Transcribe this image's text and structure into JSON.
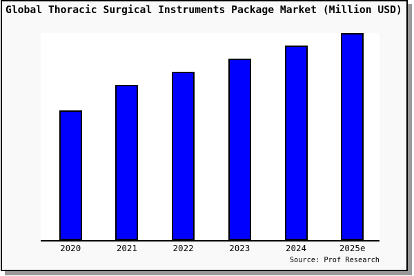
{
  "title": "Global Thoracic Surgical Instruments Package Market (Million USD)",
  "source_label": "Source: Prof Research",
  "colors": {
    "bar_fill": "#0000ff",
    "bar_border": "#000000",
    "plot_background": "#ffffff",
    "window_background": "#f9f9f9",
    "frame_border": "#000000",
    "shadow": "#999999",
    "text": "#000000"
  },
  "chart_data": {
    "type": "bar",
    "title": "Global Thoracic Surgical Instruments Package Market (Million USD)",
    "categories": [
      "2020",
      "2021",
      "2022",
      "2023",
      "2024",
      "2025e"
    ],
    "values": [
      62.7,
      75.0,
      81.3,
      87.7,
      94.0,
      100.0
    ],
    "value_note": "no y-axis or data labels shown in chart; values are bar heights relative to tallest bar (2025e = 100)",
    "xlabel": "",
    "ylabel": "",
    "ylim": [
      0,
      100
    ],
    "grid": false,
    "legend": false,
    "bar_color": "#0000ff",
    "source_label": "Source: Prof Research"
  }
}
